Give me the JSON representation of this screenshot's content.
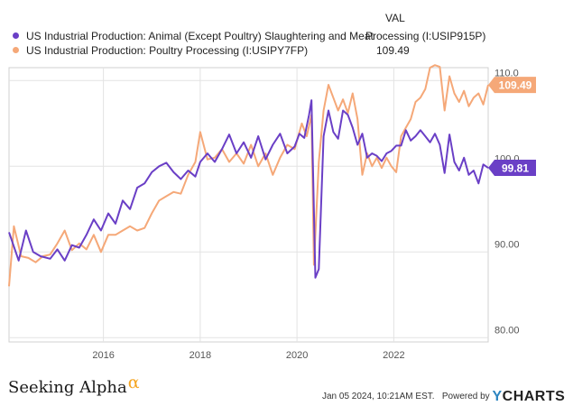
{
  "legend": {
    "val_header": "VAL",
    "series1_name": "US Industrial Production: Animal (Except Poultry) Slaughtering and Meat",
    "series1_value": "Processing (I:USIP915P)",
    "series2_name": "US Industrial Production: Poultry Processing (I:USIPY7FP)",
    "series2_value": "109.49"
  },
  "footer": {
    "brand": "Seeking Alpha",
    "brand_mark": "α",
    "timestamp": "Jan 05 2024, 10:21AM EST.",
    "powered_by": "Powered by",
    "provider_y": "Y",
    "provider_rest": "CHARTS"
  },
  "chart_data": {
    "type": "line",
    "title": "",
    "xlabel": "",
    "ylabel": "",
    "xlim": [
      2014.05,
      2023.95
    ],
    "ylim": [
      79.5,
      111.5
    ],
    "x_ticks": [
      2016,
      2018,
      2020,
      2022
    ],
    "x_tick_labels": [
      "2016",
      "2018",
      "2020",
      "2022"
    ],
    "y_ticks": [
      80,
      90,
      100,
      110
    ],
    "y_tick_labels": [
      "80.00",
      "90.00",
      "100.0",
      "110.0"
    ],
    "grid": true,
    "series": [
      {
        "name": "US Industrial Production: Animal (Except Poultry) Slaughtering and Meat Processing (I:USIP915P)",
        "color": "#6a3fc6",
        "last_label": "99.81",
        "points": [
          [
            2014.05,
            92.3
          ],
          [
            2014.25,
            89.0
          ],
          [
            2014.4,
            92.5
          ],
          [
            2014.55,
            90.0
          ],
          [
            2014.7,
            89.5
          ],
          [
            2014.9,
            89.2
          ],
          [
            2015.05,
            90.3
          ],
          [
            2015.2,
            89.0
          ],
          [
            2015.35,
            90.8
          ],
          [
            2015.5,
            90.5
          ],
          [
            2015.65,
            92.0
          ],
          [
            2015.8,
            93.8
          ],
          [
            2015.95,
            92.5
          ],
          [
            2016.1,
            94.5
          ],
          [
            2016.25,
            93.3
          ],
          [
            2016.4,
            96.0
          ],
          [
            2016.55,
            95.0
          ],
          [
            2016.7,
            97.5
          ],
          [
            2016.85,
            98.0
          ],
          [
            2017.0,
            99.3
          ],
          [
            2017.15,
            100.0
          ],
          [
            2017.3,
            100.4
          ],
          [
            2017.45,
            99.3
          ],
          [
            2017.6,
            98.5
          ],
          [
            2017.75,
            99.5
          ],
          [
            2017.9,
            98.8
          ],
          [
            2018.0,
            100.5
          ],
          [
            2018.15,
            101.5
          ],
          [
            2018.3,
            100.5
          ],
          [
            2018.45,
            102.0
          ],
          [
            2018.6,
            103.7
          ],
          [
            2018.75,
            101.5
          ],
          [
            2018.9,
            102.8
          ],
          [
            2019.05,
            101.0
          ],
          [
            2019.2,
            103.5
          ],
          [
            2019.35,
            100.8
          ],
          [
            2019.5,
            102.5
          ],
          [
            2019.65,
            103.8
          ],
          [
            2019.8,
            101.5
          ],
          [
            2019.95,
            102.3
          ],
          [
            2020.05,
            103.8
          ],
          [
            2020.15,
            103.3
          ],
          [
            2020.25,
            106.0
          ],
          [
            2020.3,
            107.7
          ],
          [
            2020.38,
            87.0
          ],
          [
            2020.45,
            88.0
          ],
          [
            2020.55,
            103.5
          ],
          [
            2020.65,
            106.5
          ],
          [
            2020.75,
            104.0
          ],
          [
            2020.85,
            103.2
          ],
          [
            2020.95,
            106.5
          ],
          [
            2021.05,
            106.0
          ],
          [
            2021.15,
            104.5
          ],
          [
            2021.25,
            102.5
          ],
          [
            2021.35,
            103.8
          ],
          [
            2021.45,
            101.0
          ],
          [
            2021.55,
            101.5
          ],
          [
            2021.65,
            101.2
          ],
          [
            2021.75,
            100.6
          ],
          [
            2021.85,
            101.5
          ],
          [
            2021.95,
            101.8
          ],
          [
            2022.05,
            102.4
          ],
          [
            2022.15,
            102.4
          ],
          [
            2022.25,
            104.2
          ],
          [
            2022.35,
            103.0
          ],
          [
            2022.45,
            103.5
          ],
          [
            2022.55,
            104.2
          ],
          [
            2022.65,
            103.5
          ],
          [
            2022.75,
            102.8
          ],
          [
            2022.85,
            103.8
          ],
          [
            2022.95,
            102.5
          ],
          [
            2023.05,
            99.2
          ],
          [
            2023.15,
            103.7
          ],
          [
            2023.25,
            100.5
          ],
          [
            2023.35,
            99.5
          ],
          [
            2023.45,
            101.0
          ],
          [
            2023.55,
            99.0
          ],
          [
            2023.65,
            99.5
          ],
          [
            2023.75,
            98.0
          ],
          [
            2023.85,
            100.2
          ],
          [
            2023.95,
            99.81
          ]
        ]
      },
      {
        "name": "US Industrial Production: Poultry Processing (I:USIPY7FP)",
        "color": "#f5a878",
        "last_label": "109.49",
        "points": [
          [
            2014.05,
            86.0
          ],
          [
            2014.15,
            93.0
          ],
          [
            2014.3,
            89.5
          ],
          [
            2014.45,
            89.3
          ],
          [
            2014.6,
            88.8
          ],
          [
            2014.75,
            89.5
          ],
          [
            2014.9,
            89.7
          ],
          [
            2015.05,
            91.0
          ],
          [
            2015.2,
            92.5
          ],
          [
            2015.35,
            90.2
          ],
          [
            2015.5,
            91.0
          ],
          [
            2015.65,
            90.3
          ],
          [
            2015.8,
            92.0
          ],
          [
            2015.95,
            90.0
          ],
          [
            2016.1,
            92.0
          ],
          [
            2016.25,
            92.0
          ],
          [
            2016.4,
            92.5
          ],
          [
            2016.55,
            93.0
          ],
          [
            2016.7,
            92.5
          ],
          [
            2016.85,
            92.8
          ],
          [
            2017.0,
            94.5
          ],
          [
            2017.15,
            96.0
          ],
          [
            2017.3,
            96.5
          ],
          [
            2017.45,
            97.0
          ],
          [
            2017.6,
            96.8
          ],
          [
            2017.75,
            99.0
          ],
          [
            2017.9,
            100.5
          ],
          [
            2018.0,
            104.0
          ],
          [
            2018.15,
            100.8
          ],
          [
            2018.3,
            101.0
          ],
          [
            2018.45,
            102.0
          ],
          [
            2018.6,
            100.5
          ],
          [
            2018.75,
            101.5
          ],
          [
            2018.9,
            100.3
          ],
          [
            2019.05,
            102.5
          ],
          [
            2019.2,
            100.0
          ],
          [
            2019.35,
            101.5
          ],
          [
            2019.5,
            99.0
          ],
          [
            2019.65,
            101.0
          ],
          [
            2019.8,
            102.5
          ],
          [
            2019.95,
            102.0
          ],
          [
            2020.1,
            105.0
          ],
          [
            2020.2,
            103.5
          ],
          [
            2020.3,
            106.0
          ],
          [
            2020.35,
            88.5
          ],
          [
            2020.45,
            100.5
          ],
          [
            2020.55,
            106.5
          ],
          [
            2020.65,
            109.5
          ],
          [
            2020.75,
            108.0
          ],
          [
            2020.85,
            106.5
          ],
          [
            2020.95,
            107.8
          ],
          [
            2021.05,
            106.2
          ],
          [
            2021.15,
            108.5
          ],
          [
            2021.25,
            105.5
          ],
          [
            2021.35,
            99.0
          ],
          [
            2021.45,
            101.5
          ],
          [
            2021.55,
            100.0
          ],
          [
            2021.65,
            101.0
          ],
          [
            2021.75,
            99.8
          ],
          [
            2021.85,
            101.0
          ],
          [
            2021.95,
            100.0
          ],
          [
            2022.05,
            99.3
          ],
          [
            2022.15,
            103.5
          ],
          [
            2022.25,
            104.5
          ],
          [
            2022.35,
            105.5
          ],
          [
            2022.45,
            107.5
          ],
          [
            2022.55,
            108.0
          ],
          [
            2022.65,
            109.0
          ],
          [
            2022.75,
            111.5
          ],
          [
            2022.85,
            111.8
          ],
          [
            2022.95,
            111.6
          ],
          [
            2023.05,
            106.5
          ],
          [
            2023.15,
            110.5
          ],
          [
            2023.25,
            108.5
          ],
          [
            2023.35,
            107.5
          ],
          [
            2023.45,
            108.8
          ],
          [
            2023.55,
            107.0
          ],
          [
            2023.65,
            108.0
          ],
          [
            2023.75,
            108.5
          ],
          [
            2023.85,
            107.2
          ],
          [
            2023.95,
            109.49
          ]
        ]
      }
    ]
  }
}
